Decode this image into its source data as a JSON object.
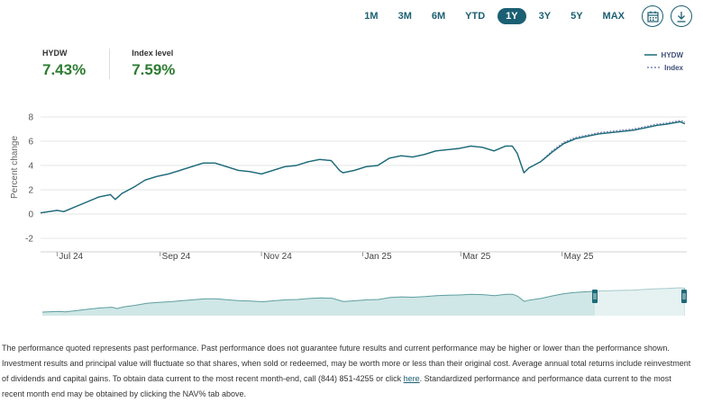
{
  "range_buttons": [
    "1M",
    "3M",
    "6M",
    "YTD",
    "1Y",
    "3Y",
    "5Y",
    "MAX"
  ],
  "active_range": "1Y",
  "icons": {
    "calendar": "calendar-icon",
    "download": "download-icon"
  },
  "stats": [
    {
      "label": "HYDW",
      "value": "7.43%"
    },
    {
      "label": "Index level",
      "value": "7.59%"
    }
  ],
  "legend": {
    "fund": "HYDW",
    "index": "Index"
  },
  "colors": {
    "accent": "#1b5f73",
    "fund_line": "#1b6a78",
    "index_line": "#7a86b5",
    "positive": "#2e7d32",
    "navigator_fill": "#cfe7e6"
  },
  "chart_data": {
    "type": "line",
    "ylabel": "Percent change",
    "ylim": [
      -2.5,
      8.5
    ],
    "y_ticks": [
      -2,
      0,
      2,
      4,
      6,
      8
    ],
    "x_tick_labels": [
      "Jul 24",
      "Sep 24",
      "Nov 24",
      "Jan 25",
      "Mar 25",
      "May 25"
    ],
    "x_tick_dates": [
      "2024-07-01",
      "2024-09-01",
      "2024-11-01",
      "2025-01-01",
      "2025-03-01",
      "2025-05-01"
    ],
    "grid": true,
    "legend_position": "top-right",
    "series": [
      {
        "name": "HYDW",
        "x": [
          "2024-06-21",
          "2024-07-01",
          "2024-07-05",
          "2024-07-12",
          "2024-07-19",
          "2024-07-26",
          "2024-08-02",
          "2024-08-05",
          "2024-08-09",
          "2024-08-16",
          "2024-08-23",
          "2024-08-30",
          "2024-09-06",
          "2024-09-13",
          "2024-09-20",
          "2024-09-27",
          "2024-10-04",
          "2024-10-11",
          "2024-10-18",
          "2024-10-25",
          "2024-11-01",
          "2024-11-08",
          "2024-11-15",
          "2024-11-22",
          "2024-11-29",
          "2024-12-06",
          "2024-12-13",
          "2024-12-18",
          "2024-12-20",
          "2024-12-27",
          "2025-01-03",
          "2025-01-10",
          "2025-01-17",
          "2025-01-24",
          "2025-01-31",
          "2025-02-07",
          "2025-02-14",
          "2025-02-21",
          "2025-02-28",
          "2025-03-07",
          "2025-03-14",
          "2025-03-21",
          "2025-03-28",
          "2025-04-01",
          "2025-04-04",
          "2025-04-08",
          "2025-04-11",
          "2025-04-18",
          "2025-04-25",
          "2025-05-02",
          "2025-05-09",
          "2025-05-16",
          "2025-05-23",
          "2025-05-30",
          "2025-06-06",
          "2025-06-13",
          "2025-06-20",
          "2025-06-27",
          "2025-07-03",
          "2025-07-11",
          "2025-07-14"
        ],
        "values": [
          0.1,
          0.3,
          0.2,
          0.6,
          1.0,
          1.4,
          1.6,
          1.2,
          1.7,
          2.2,
          2.8,
          3.1,
          3.3,
          3.6,
          3.9,
          4.2,
          4.2,
          3.9,
          3.6,
          3.5,
          3.3,
          3.6,
          3.9,
          4.0,
          4.3,
          4.5,
          4.4,
          3.6,
          3.4,
          3.6,
          3.9,
          4.0,
          4.6,
          4.8,
          4.7,
          4.9,
          5.2,
          5.3,
          5.4,
          5.6,
          5.5,
          5.2,
          5.6,
          5.6,
          5.0,
          3.4,
          3.8,
          4.3,
          5.1,
          5.8,
          6.2,
          6.4,
          6.6,
          6.7,
          6.8,
          6.9,
          7.1,
          7.3,
          7.4,
          7.6,
          7.43
        ]
      },
      {
        "name": "Index",
        "x": [
          "2024-06-21",
          "2024-07-01",
          "2024-07-05",
          "2024-07-12",
          "2024-07-19",
          "2024-07-26",
          "2024-08-02",
          "2024-08-05",
          "2024-08-09",
          "2024-08-16",
          "2024-08-23",
          "2024-08-30",
          "2024-09-06",
          "2024-09-13",
          "2024-09-20",
          "2024-09-27",
          "2024-10-04",
          "2024-10-11",
          "2024-10-18",
          "2024-10-25",
          "2024-11-01",
          "2024-11-08",
          "2024-11-15",
          "2024-11-22",
          "2024-11-29",
          "2024-12-06",
          "2024-12-13",
          "2024-12-18",
          "2024-12-20",
          "2024-12-27",
          "2025-01-03",
          "2025-01-10",
          "2025-01-17",
          "2025-01-24",
          "2025-01-31",
          "2025-02-07",
          "2025-02-14",
          "2025-02-21",
          "2025-02-28",
          "2025-03-07",
          "2025-03-14",
          "2025-03-21",
          "2025-03-28",
          "2025-04-01",
          "2025-04-04",
          "2025-04-08",
          "2025-04-11",
          "2025-04-18",
          "2025-04-25",
          "2025-05-02",
          "2025-05-09",
          "2025-05-16",
          "2025-05-23",
          "2025-05-30",
          "2025-06-06",
          "2025-06-13",
          "2025-06-20",
          "2025-06-27",
          "2025-07-03",
          "2025-07-11",
          "2025-07-14"
        ],
        "values": [
          0.1,
          0.3,
          0.2,
          0.6,
          1.0,
          1.4,
          1.6,
          1.2,
          1.7,
          2.2,
          2.8,
          3.1,
          3.3,
          3.6,
          3.9,
          4.2,
          4.2,
          3.9,
          3.6,
          3.5,
          3.3,
          3.6,
          3.9,
          4.0,
          4.3,
          4.5,
          4.4,
          3.6,
          3.4,
          3.6,
          3.9,
          4.0,
          4.6,
          4.8,
          4.7,
          4.9,
          5.2,
          5.3,
          5.4,
          5.6,
          5.5,
          5.2,
          5.6,
          5.6,
          5.0,
          3.4,
          3.8,
          4.3,
          5.2,
          5.9,
          6.3,
          6.5,
          6.7,
          6.8,
          6.9,
          7.0,
          7.2,
          7.4,
          7.5,
          7.7,
          7.59
        ]
      }
    ]
  },
  "disclaimer": {
    "text_before": "The performance quoted represents past performance. Past performance does not guarantee future results and current performance may be higher or lower than the performance shown. Investment results and principal value will fluctuate so that shares, when sold or redeemed, may be worth more or less than their original cost. Average annual total returns include reinvestment of dividends and capital gains. To obtain data current to the most recent month-end, call (844) 851-4255 or click ",
    "link": "here",
    "text_after": ". Standardized performance and performance data current to the most recent month end may be obtained by clicking the NAV% tab above."
  }
}
